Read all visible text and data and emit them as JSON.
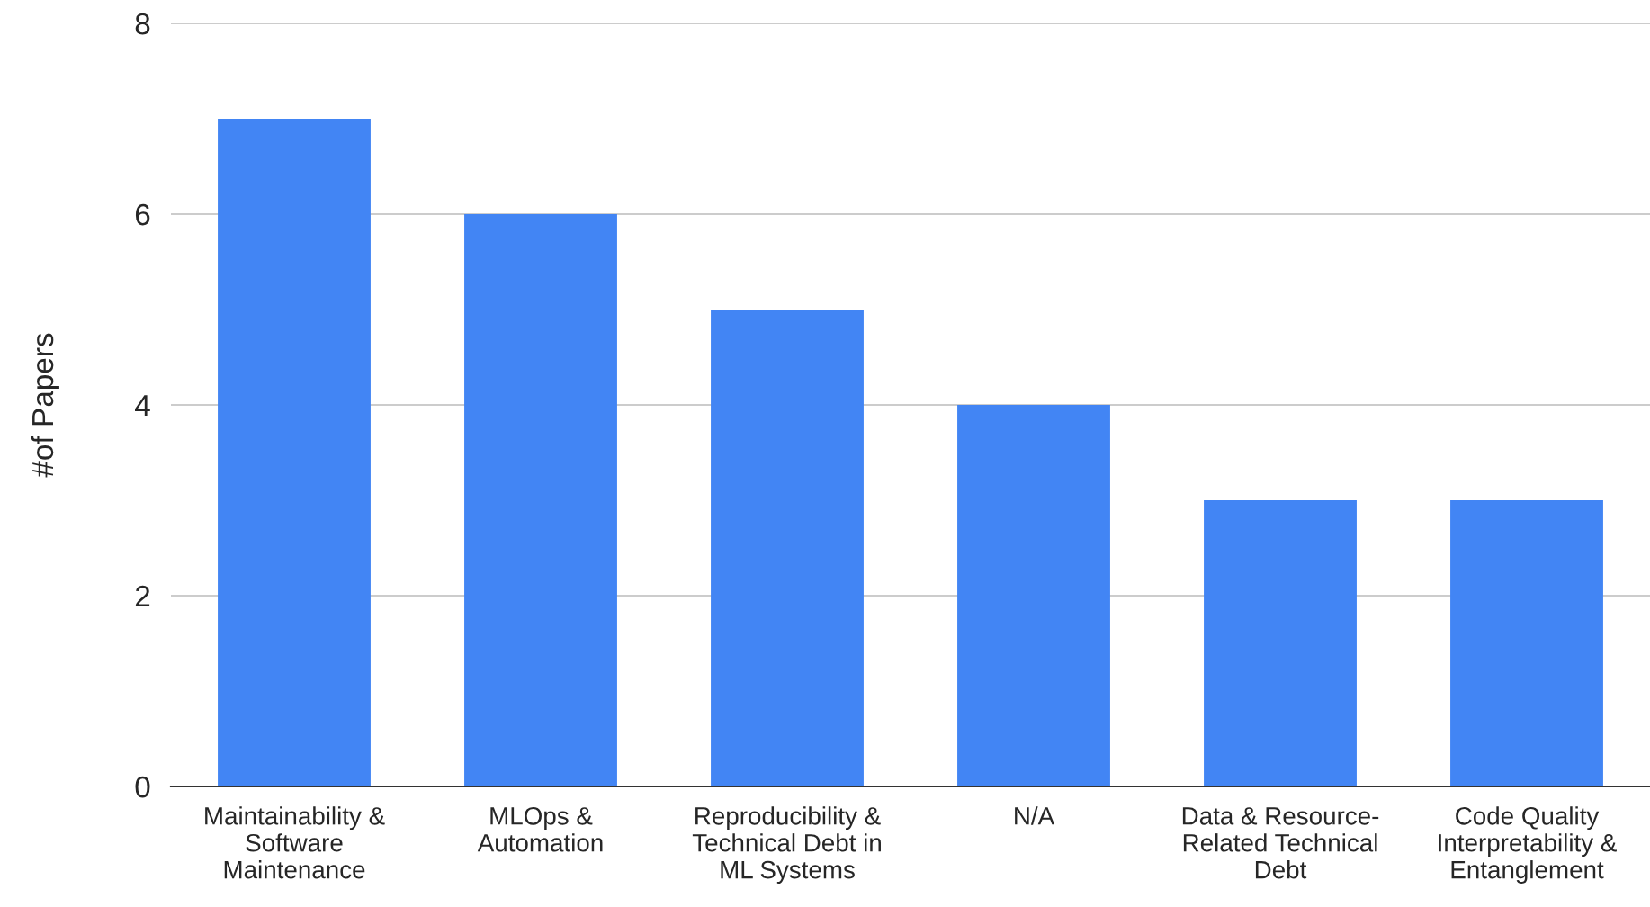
{
  "chart_data": {
    "type": "bar",
    "ylabel": "#of Papers",
    "categories": [
      "Maintainability &\nSoftware\nMaintenance",
      "MLOps &\nAutomation",
      "Reproducibility &\nTechnical Debt in\nML Systems",
      "N/A",
      "Data & Resource-\nRelated Technical\nDebt",
      "Code Quality\nInterpretability &\nEntanglement"
    ],
    "values": [
      7,
      6,
      5,
      4,
      3,
      3
    ],
    "color": "#4285f4",
    "ylim": [
      0,
      8
    ],
    "yticks": [
      0,
      2,
      4,
      6,
      8
    ],
    "grid": "y",
    "legend": false
  }
}
